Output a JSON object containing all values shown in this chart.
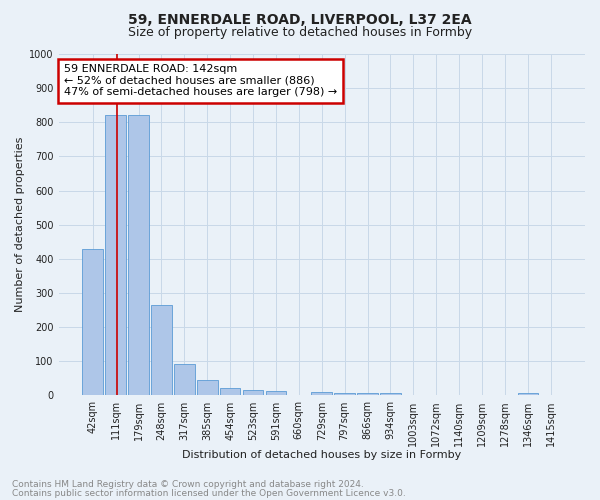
{
  "title_line1": "59, ENNERDALE ROAD, LIVERPOOL, L37 2EA",
  "title_line2": "Size of property relative to detached houses in Formby",
  "xlabel": "Distribution of detached houses by size in Formby",
  "ylabel": "Number of detached properties",
  "bar_labels": [
    "42sqm",
    "111sqm",
    "179sqm",
    "248sqm",
    "317sqm",
    "385sqm",
    "454sqm",
    "523sqm",
    "591sqm",
    "660sqm",
    "729sqm",
    "797sqm",
    "866sqm",
    "934sqm",
    "1003sqm",
    "1072sqm",
    "1140sqm",
    "1209sqm",
    "1278sqm",
    "1346sqm",
    "1415sqm"
  ],
  "bar_values": [
    430,
    820,
    820,
    265,
    93,
    44,
    21,
    16,
    12,
    0,
    9,
    6,
    6,
    6,
    0,
    0,
    0,
    0,
    0,
    8,
    0
  ],
  "bar_color": "#aec6e8",
  "bar_edge_color": "#5b9bd5",
  "annotation_text": "59 ENNERDALE ROAD: 142sqm\n← 52% of detached houses are smaller (886)\n47% of semi-detached houses are larger (798) →",
  "annotation_box_color": "#ffffff",
  "annotation_box_edge_color": "#cc0000",
  "vline_color": "#cc0000",
  "vline_x_bar_index": 1,
  "ylim": [
    0,
    1000
  ],
  "yticks": [
    0,
    100,
    200,
    300,
    400,
    500,
    600,
    700,
    800,
    900,
    1000
  ],
  "grid_color": "#c8d8e8",
  "background_color": "#eaf1f8",
  "footer_line1": "Contains HM Land Registry data © Crown copyright and database right 2024.",
  "footer_line2": "Contains public sector information licensed under the Open Government Licence v3.0.",
  "title_fontsize": 10,
  "subtitle_fontsize": 9,
  "axis_label_fontsize": 8,
  "tick_fontsize": 7,
  "annotation_fontsize": 8,
  "footer_fontsize": 6.5
}
